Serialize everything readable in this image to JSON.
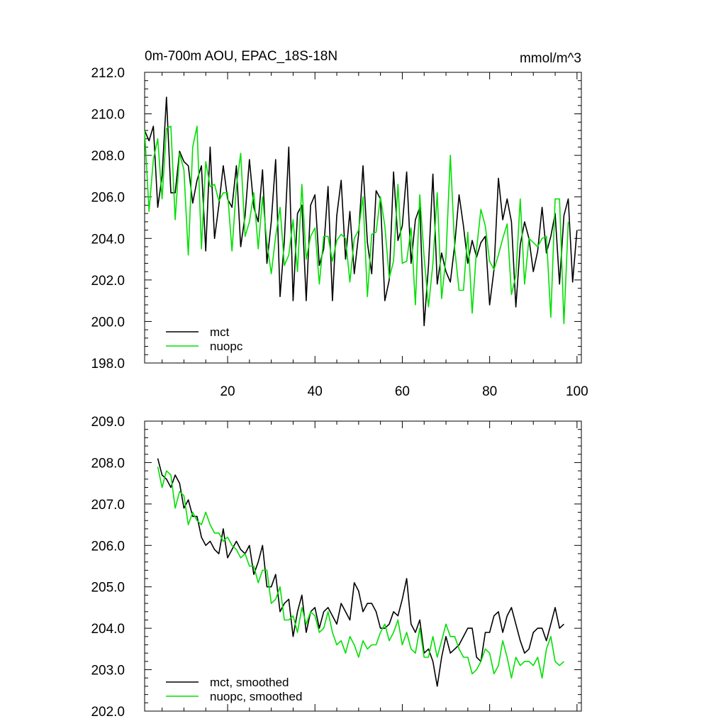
{
  "chart_data": [
    {
      "type": "line",
      "title": "0m-700m AOU, EPAC_18S-18N",
      "units": "mmol/m^3",
      "xlim": [
        1,
        101
      ],
      "ylim": [
        198,
        212
      ],
      "yticks": [
        198,
        200,
        202,
        204,
        206,
        208,
        210,
        212
      ],
      "ytick_labels": [
        "198.0",
        "200.0",
        "202.0",
        "204.0",
        "206.0",
        "208.0",
        "210.0",
        "212.0"
      ],
      "xticks": [
        20,
        40,
        60,
        80,
        100
      ],
      "xtick_labels": [
        "20",
        "40",
        "60",
        "80",
        "100"
      ],
      "legend_position": "bottom-left",
      "colors": {
        "mct": "#000000",
        "nuopc": "#00e000"
      },
      "series": [
        {
          "name": "mct",
          "x_start": 1,
          "values": [
            209.2,
            208.7,
            209.4,
            205.5,
            207.0,
            210.8,
            206.2,
            206.2,
            208.2,
            207.7,
            207.5,
            205.7,
            206.8,
            207.5,
            203.4,
            208.4,
            204.0,
            205.6,
            207.5,
            205.9,
            205.5,
            207.5,
            203.6,
            205.1,
            207.8,
            205.5,
            204.8,
            207.3,
            202.8,
            204.8,
            207.8,
            201.2,
            203.9,
            208.4,
            201.0,
            205.2,
            205.6,
            201.0,
            205.6,
            206.1,
            202.7,
            203.5,
            206.5,
            201.0,
            205.1,
            206.8,
            203.0,
            205.3,
            202.3,
            204.2,
            207.5,
            203.8,
            202.3,
            206.3,
            205.9,
            201.0,
            202.0,
            207.2,
            203.9,
            204.6,
            207.2,
            202.8,
            204.9,
            205.5,
            199.8,
            202.7,
            207.1,
            201.8,
            203.3,
            202.4,
            201.9,
            203.7,
            206.1,
            204.6,
            202.8,
            203.9,
            203.1,
            203.8,
            204.1,
            200.8,
            202.5,
            206.9,
            204.9,
            205.9,
            204.8,
            200.7,
            203.7,
            204.8,
            204.0,
            202.4,
            203.4,
            205.5,
            203.3,
            204.1,
            205.2,
            201.8,
            205.1,
            205.9,
            201.9,
            204.4
          ]
        },
        {
          "name": "nuopc",
          "x_start": 1,
          "values": [
            209.2,
            205.3,
            207.8,
            208.8,
            205.9,
            209.3,
            209.4,
            204.9,
            208.1,
            207.3,
            203.2,
            208.4,
            209.4,
            203.5,
            207.7,
            206.5,
            206.6,
            205.8,
            206.2,
            206.2,
            203.4,
            206.5,
            208.1,
            204.1,
            204.8,
            206.2,
            203.5,
            206.0,
            203.8,
            202.3,
            204.1,
            205.5,
            202.7,
            203.2,
            204.9,
            202.4,
            206.6,
            203.0,
            204.1,
            204.5,
            201.8,
            204.1,
            204.1,
            202.9,
            203.9,
            204.2,
            204.0,
            201.9,
            204.0,
            204.4,
            206.0,
            201.2,
            204.2,
            204.3,
            206.0,
            204.6,
            202.1,
            202.9,
            206.6,
            202.8,
            202.9,
            204.5,
            200.8,
            206.1,
            203.1,
            200.7,
            202.8,
            206.2,
            201.1,
            203.1,
            208.0,
            203.5,
            201.5,
            201.5,
            204.3,
            200.4,
            203.5,
            205.4,
            204.6,
            202.9,
            202.5,
            203.2,
            204.0,
            204.7,
            201.3,
            202.2,
            205.9,
            201.8,
            204.0,
            203.8,
            203.6,
            204.0,
            204.1,
            200.2,
            205.9,
            205.9,
            199.9,
            204.8
          ]
        }
      ]
    },
    {
      "type": "line",
      "title": "",
      "xlim": [
        1,
        101
      ],
      "ylim": [
        202,
        209
      ],
      "yticks": [
        202,
        203,
        204,
        205,
        206,
        207,
        208,
        209
      ],
      "ytick_labels": [
        "202.0",
        "203.0",
        "204.0",
        "205.0",
        "206.0",
        "207.0",
        "208.0",
        "209.0"
      ],
      "xticks": [
        20,
        40,
        60,
        80,
        100
      ],
      "xtick_labels": [],
      "legend_position": "bottom-left",
      "colors": {
        "mct": "#000000",
        "nuopc": "#00e000"
      },
      "series": [
        {
          "name": "mct, smoothed",
          "x_start": 4,
          "values": [
            208.1,
            207.7,
            207.6,
            207.4,
            207.7,
            207.5,
            206.9,
            207.1,
            206.7,
            206.7,
            206.2,
            206.0,
            206.1,
            205.9,
            205.8,
            206.4,
            205.7,
            205.9,
            206.1,
            205.9,
            205.8,
            206.0,
            205.3,
            205.6,
            206.0,
            205.0,
            205.0,
            205.3,
            204.4,
            204.6,
            204.7,
            203.8,
            204.4,
            204.8,
            203.9,
            204.4,
            204.5,
            204.0,
            204.4,
            204.5,
            204.3,
            204.1,
            204.6,
            204.4,
            204.2,
            205.1,
            204.9,
            204.4,
            204.6,
            204.6,
            204.4,
            204.0,
            204.0,
            204.1,
            204.4,
            204.3,
            204.7,
            205.2,
            204.1,
            203.9,
            204.2,
            203.4,
            203.5,
            203.2,
            202.6,
            203.3,
            203.8,
            203.4,
            203.5,
            203.6,
            203.8,
            204.0,
            204.0,
            203.3,
            203.2,
            203.9,
            203.9,
            204.3,
            204.4,
            203.9,
            204.3,
            204.5,
            204.1,
            203.7,
            203.4,
            203.5,
            203.9,
            204.0,
            204.0,
            203.7,
            204.1,
            204.5,
            204.0,
            204.1
          ]
        },
        {
          "name": "nuopc, smoothed",
          "x_start": 4,
          "values": [
            207.9,
            207.4,
            207.8,
            207.7,
            206.9,
            207.3,
            207.2,
            206.5,
            206.8,
            206.6,
            206.5,
            206.8,
            206.5,
            206.3,
            206.3,
            206.1,
            206.2,
            206.0,
            205.9,
            205.7,
            205.8,
            205.5,
            205.5,
            205.1,
            205.4,
            205.4,
            204.6,
            204.7,
            205.0,
            204.2,
            204.2,
            204.3,
            203.9,
            204.5,
            204.1,
            204.4,
            204.3,
            203.9,
            204.0,
            204.4,
            203.9,
            203.6,
            203.7,
            203.4,
            203.8,
            203.6,
            203.3,
            203.7,
            203.5,
            203.6,
            203.6,
            203.9,
            204.1,
            203.7,
            203.9,
            204.2,
            203.6,
            203.9,
            203.5,
            203.4,
            204.0,
            203.3,
            203.3,
            203.8,
            203.3,
            203.7,
            204.1,
            203.8,
            203.8,
            203.5,
            203.3,
            203.3,
            202.9,
            203.0,
            203.2,
            203.5,
            203.4,
            202.9,
            203.1,
            203.7,
            203.3,
            202.8,
            203.3,
            203.1,
            203.2,
            203.2,
            203.1,
            203.3,
            202.8,
            203.5,
            203.8,
            203.2,
            203.1,
            203.2
          ]
        }
      ]
    }
  ]
}
